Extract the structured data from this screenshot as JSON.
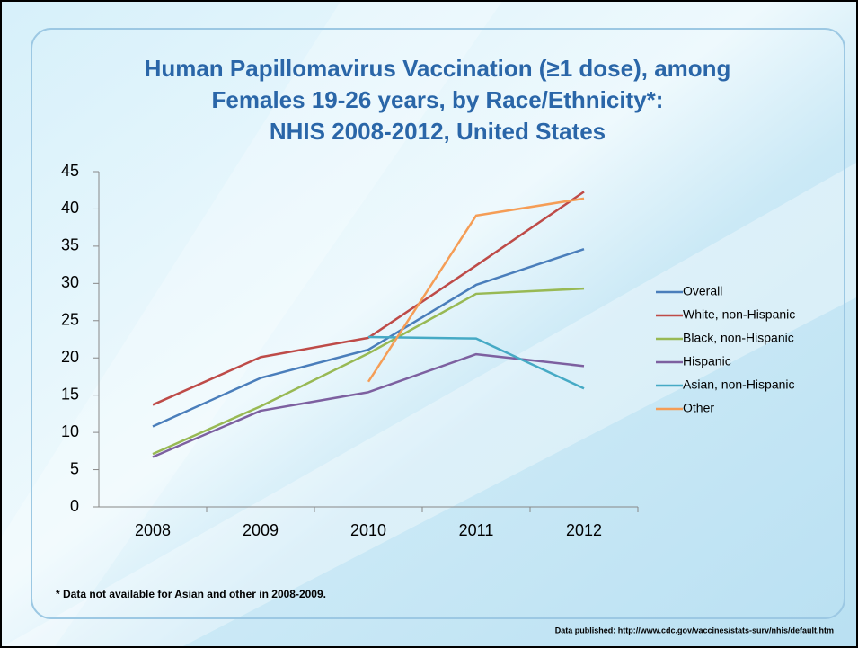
{
  "chart_data": {
    "type": "line",
    "title": [
      "Human Papillomavirus Vaccination (≥1 dose), among",
      "Females 19-26 years, by Race/Ethnicity*:",
      "NHIS 2008-2012, United States"
    ],
    "categories": [
      "2008",
      "2009",
      "2010",
      "2011",
      "2012"
    ],
    "series": [
      {
        "name": "Overall",
        "color": "#4a7ebb",
        "values": [
          10.8,
          17.3,
          21.1,
          29.8,
          34.6
        ]
      },
      {
        "name": "White, non-Hispanic",
        "color": "#be4b48",
        "values": [
          13.7,
          20.1,
          22.7,
          32.4,
          42.3
        ]
      },
      {
        "name": "Black, non-Hispanic",
        "color": "#98b954",
        "values": [
          7.1,
          13.5,
          20.6,
          28.6,
          29.3
        ]
      },
      {
        "name": "Hispanic",
        "color": "#7d60a0",
        "values": [
          6.7,
          12.9,
          15.4,
          20.5,
          18.9
        ]
      },
      {
        "name": "Asian, non-Hispanic",
        "color": "#46aac5",
        "values": [
          null,
          null,
          22.8,
          22.6,
          15.9
        ]
      },
      {
        "name": "Other",
        "color": "#f59d56",
        "values": [
          null,
          null,
          16.8,
          39.1,
          41.4
        ]
      }
    ],
    "ylim": [
      0,
      45
    ],
    "yticks": [
      0,
      5,
      10,
      15,
      20,
      25,
      30,
      35,
      40,
      45
    ],
    "legend": "right",
    "footnote": "* Data not available for Asian and other in 2008-2009.",
    "source": "Data published: http://www.cdc.gov/vaccines/stats-surv/nhis/default.htm"
  }
}
